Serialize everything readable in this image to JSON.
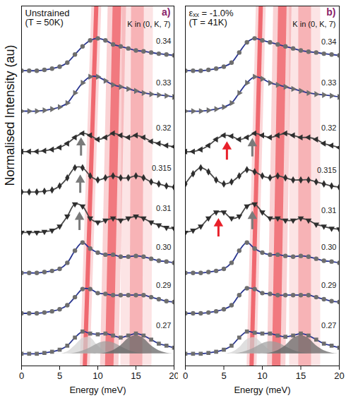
{
  "chart_data": [
    {
      "type": "line",
      "title": [
        "Unstrained",
        "(T = 50K)"
      ],
      "panel_label": "a)",
      "annotation": "K in (0, K, 7)",
      "x_label": "Energy (meV)",
      "y_label": "Normalised Intensity (au)",
      "tick_labels": "x",
      "xlim": [
        0,
        20
      ],
      "xticks": [
        0,
        5,
        10,
        15,
        20
      ],
      "ylim": [
        -0.3,
        8.6
      ],
      "x": [
        0,
        1,
        2,
        3,
        4,
        5,
        6,
        7,
        8,
        9,
        10,
        11,
        12,
        13,
        14,
        15,
        16,
        17,
        18,
        19,
        20
      ],
      "series": [
        {
          "name": "0.34",
          "color": "#2a3690",
          "marker": "circle",
          "values": [
            7.0,
            7.0,
            7.0,
            7.02,
            7.05,
            7.1,
            7.2,
            7.4,
            7.6,
            7.75,
            7.8,
            7.75,
            7.65,
            7.6,
            7.55,
            7.5,
            7.48,
            7.45,
            7.42,
            7.4,
            7.38
          ]
        },
        {
          "name": "0.33",
          "color": "#2a3690",
          "marker": "triangle-right",
          "values": [
            6.0,
            6.0,
            6.0,
            6.02,
            6.05,
            6.1,
            6.2,
            6.45,
            6.7,
            6.85,
            6.85,
            6.75,
            6.65,
            6.6,
            6.55,
            6.5,
            6.45,
            6.42,
            6.4,
            6.38,
            6.35
          ]
        },
        {
          "name": "0.32",
          "color": "#4a4a4a",
          "marker": "triangle-left",
          "values": [
            5.0,
            5.0,
            5.0,
            5.02,
            5.05,
            5.1,
            5.2,
            5.35,
            5.45,
            5.4,
            5.3,
            5.35,
            5.45,
            5.4,
            5.35,
            5.4,
            5.35,
            5.25,
            5.2,
            5.15,
            5.12
          ]
        },
        {
          "name": "0.315",
          "color": "#4a4a4a",
          "marker": "diamond",
          "values": [
            4.0,
            4.0,
            4.0,
            4.02,
            4.05,
            4.15,
            4.35,
            4.6,
            4.6,
            4.4,
            4.3,
            4.35,
            4.4,
            4.35,
            4.35,
            4.4,
            4.35,
            4.25,
            4.2,
            4.15,
            4.12
          ]
        },
        {
          "name": "0.31",
          "color": "#4a4a4a",
          "marker": "triangle-down",
          "values": [
            3.0,
            3.0,
            3.0,
            3.02,
            3.05,
            3.15,
            3.4,
            3.7,
            3.65,
            3.35,
            3.25,
            3.3,
            3.35,
            3.3,
            3.35,
            3.4,
            3.35,
            3.25,
            3.18,
            3.12,
            3.1
          ]
        },
        {
          "name": "0.30",
          "color": "#2a3690",
          "marker": "circle",
          "values": [
            2.0,
            2.0,
            2.0,
            2.02,
            2.05,
            2.1,
            2.25,
            2.55,
            2.75,
            2.6,
            2.5,
            2.45,
            2.45,
            2.4,
            2.4,
            2.42,
            2.4,
            2.35,
            2.3,
            2.28,
            2.25
          ]
        },
        {
          "name": "0.29",
          "color": "#2a3690",
          "marker": "circle",
          "values": [
            1.0,
            1.0,
            1.0,
            1.02,
            1.05,
            1.1,
            1.2,
            1.4,
            1.6,
            1.6,
            1.5,
            1.48,
            1.45,
            1.45,
            1.45,
            1.45,
            1.45,
            1.4,
            1.35,
            1.3,
            1.28
          ]
        },
        {
          "name": "0.27",
          "color": "#2a3690",
          "marker": "square",
          "values": [
            0.0,
            0.0,
            0.0,
            0.02,
            0.05,
            0.1,
            0.2,
            0.4,
            0.55,
            0.5,
            0.48,
            0.5,
            0.45,
            0.4,
            0.45,
            0.5,
            0.45,
            0.35,
            0.25,
            0.2,
            0.15
          ]
        }
      ],
      "components": [
        {
          "color": "#d2d2d2",
          "values": [
            0,
            0,
            0,
            0,
            0,
            0,
            0.05,
            0.2,
            0.38,
            0.4,
            0.2,
            0.05,
            0,
            0,
            0,
            0,
            0,
            0,
            0,
            0,
            0
          ]
        },
        {
          "color": "#9c9c9c",
          "values": [
            0,
            0,
            0,
            0,
            0,
            0,
            0,
            0.02,
            0.07,
            0.15,
            0.25,
            0.3,
            0.27,
            0.18,
            0.09,
            0.03,
            0.01,
            0,
            0,
            0,
            0
          ]
        },
        {
          "color": "#5e5e5e",
          "values": [
            0,
            0,
            0,
            0,
            0,
            0,
            0,
            0,
            0,
            0,
            0,
            0.02,
            0.08,
            0.2,
            0.38,
            0.45,
            0.38,
            0.2,
            0.08,
            0.02,
            0
          ]
        }
      ],
      "bands": [
        {
          "color": "#e8202a",
          "x": [
            8.3,
            9.8
          ]
        },
        {
          "color": "#e8202a",
          "x": [
            11.5,
            12.5
          ]
        },
        {
          "color": "#e8202a",
          "x": [
            15.0,
            15.2
          ]
        }
      ],
      "arrows": [
        {
          "x": 7.8,
          "y": 5.22,
          "color": "#7a7a7a"
        },
        {
          "x": 7.7,
          "y": 4.3,
          "color": "#7a7a7a"
        },
        {
          "x": 7.6,
          "y": 3.38,
          "color": "#7a7a7a"
        }
      ]
    },
    {
      "type": "line",
      "title": [
        "εₓₓ = -1.0%",
        "(T = 41K)"
      ],
      "panel_label": "b)",
      "annotation": "K in (0, K, 7)",
      "x_label": "Energy (meV)",
      "tick_labels": "x",
      "xlim": [
        0,
        20
      ],
      "xticks": [
        0,
        5,
        10,
        15,
        20
      ],
      "ylim": [
        -0.3,
        8.6
      ],
      "x": [
        0,
        1,
        2,
        3,
        4,
        5,
        6,
        7,
        8,
        9,
        10,
        11,
        12,
        13,
        14,
        15,
        16,
        17,
        18,
        19,
        20
      ],
      "series": [
        {
          "name": "0.34",
          "color": "#2a3690",
          "marker": "circle",
          "values": [
            7.0,
            7.0,
            7.0,
            7.02,
            7.05,
            7.1,
            7.2,
            7.45,
            7.7,
            7.8,
            7.75,
            7.7,
            7.65,
            7.6,
            7.55,
            7.5,
            7.47,
            7.45,
            7.42,
            7.4,
            7.38
          ]
        },
        {
          "name": "0.33",
          "color": "#2a3690",
          "marker": "triangle-right",
          "values": [
            6.0,
            6.0,
            6.0,
            6.02,
            6.05,
            6.1,
            6.2,
            6.45,
            6.7,
            6.85,
            6.8,
            6.7,
            6.65,
            6.6,
            6.55,
            6.5,
            6.45,
            6.42,
            6.4,
            6.38,
            6.35
          ]
        },
        {
          "name": "0.32",
          "color": "#4a4a4a",
          "marker": "triangle-left",
          "values": [
            5.0,
            5.0,
            5.05,
            5.15,
            5.3,
            5.4,
            5.38,
            5.3,
            5.35,
            5.45,
            5.4,
            5.35,
            5.4,
            5.45,
            5.4,
            5.35,
            5.35,
            5.3,
            5.2,
            5.15,
            5.1
          ]
        },
        {
          "name": "0.315",
          "color": "#4a4a4a",
          "marker": "diamond",
          "values": [
            4.2,
            4.45,
            4.6,
            4.5,
            4.3,
            4.2,
            4.25,
            4.4,
            4.55,
            4.5,
            4.4,
            4.35,
            4.4,
            4.35,
            4.3,
            4.3,
            4.3,
            4.25,
            4.2,
            4.15,
            4.12
          ]
        },
        {
          "name": "0.31",
          "color": "#4a4a4a",
          "marker": "triangle-down",
          "values": [
            3.0,
            3.05,
            3.15,
            3.35,
            3.5,
            3.5,
            3.35,
            3.4,
            3.65,
            3.7,
            3.5,
            3.35,
            3.35,
            3.3,
            3.3,
            3.35,
            3.3,
            3.2,
            3.15,
            3.1,
            3.08
          ]
        },
        {
          "name": "0.30",
          "color": "#2a3690",
          "marker": "circle",
          "values": [
            2.0,
            2.0,
            2.0,
            2.02,
            2.05,
            2.1,
            2.25,
            2.55,
            2.75,
            2.6,
            2.5,
            2.45,
            2.45,
            2.42,
            2.4,
            2.42,
            2.4,
            2.35,
            2.3,
            2.28,
            2.25
          ]
        },
        {
          "name": "0.29",
          "color": "#2a3690",
          "marker": "circle",
          "values": [
            1.0,
            1.0,
            1.0,
            1.02,
            1.05,
            1.1,
            1.2,
            1.45,
            1.62,
            1.6,
            1.5,
            1.48,
            1.45,
            1.45,
            1.45,
            1.45,
            1.45,
            1.4,
            1.35,
            1.3,
            1.28
          ]
        },
        {
          "name": "0.27",
          "color": "#2a3690",
          "marker": "square",
          "values": [
            0.0,
            0.0,
            0.0,
            0.02,
            0.05,
            0.1,
            0.2,
            0.4,
            0.55,
            0.52,
            0.5,
            0.5,
            0.45,
            0.42,
            0.45,
            0.5,
            0.45,
            0.35,
            0.25,
            0.2,
            0.15
          ]
        }
      ],
      "components": [
        {
          "color": "#d2d2d2",
          "values": [
            0,
            0,
            0,
            0,
            0,
            0,
            0.03,
            0.15,
            0.35,
            0.4,
            0.25,
            0.08,
            0.01,
            0,
            0,
            0,
            0,
            0,
            0,
            0,
            0
          ]
        },
        {
          "color": "#9c9c9c",
          "values": [
            0,
            0,
            0,
            0,
            0,
            0,
            0,
            0.02,
            0.07,
            0.15,
            0.25,
            0.3,
            0.27,
            0.18,
            0.09,
            0.03,
            0.01,
            0,
            0,
            0,
            0
          ]
        },
        {
          "color": "#5e5e5e",
          "values": [
            0,
            0,
            0,
            0,
            0,
            0,
            0,
            0,
            0,
            0,
            0,
            0.02,
            0.08,
            0.2,
            0.38,
            0.45,
            0.38,
            0.2,
            0.08,
            0.02,
            0
          ]
        }
      ],
      "bands": [
        {
          "color": "#e8202a",
          "x": [
            8.6,
            9.8
          ]
        },
        {
          "color": "#e8202a",
          "x": [
            11.8,
            12.6
          ]
        },
        {
          "color": "#e8202a",
          "x": [
            15.5,
            15.5
          ]
        }
      ],
      "arrows": [
        {
          "x": 5.4,
          "y": 5.12,
          "color": "#e8202a"
        },
        {
          "x": 8.7,
          "y": 5.2,
          "color": "#7a7a7a"
        },
        {
          "x": 4.3,
          "y": 3.22,
          "color": "#e8202a"
        },
        {
          "x": 8.7,
          "y": 3.4,
          "color": "#7a7a7a"
        }
      ]
    }
  ]
}
